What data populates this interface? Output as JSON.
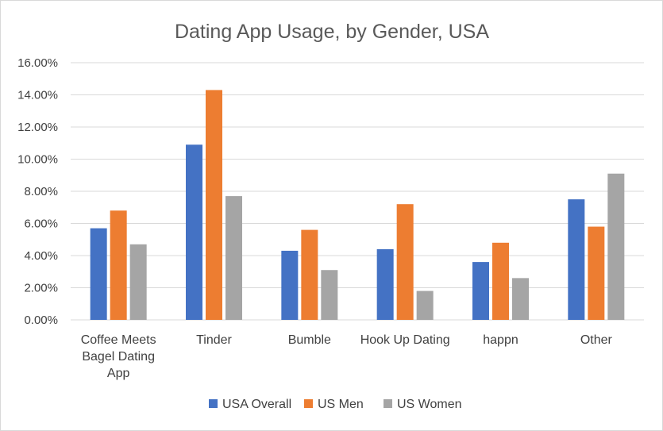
{
  "chart_data": {
    "type": "bar",
    "title": "Dating App Usage, by Gender, USA",
    "xlabel": "",
    "ylabel": "",
    "categories": [
      [
        "Coffee Meets",
        "Bagel Dating",
        "App"
      ],
      [
        "Tinder"
      ],
      [
        "Bumble"
      ],
      [
        "Hook Up Dating"
      ],
      [
        "happn"
      ],
      [
        "Other"
      ]
    ],
    "series": [
      {
        "name": "USA Overall",
        "color": "#4472c4",
        "values": [
          5.7,
          10.9,
          4.3,
          4.4,
          3.6,
          7.5
        ]
      },
      {
        "name": "US Men",
        "color": "#ed7d31",
        "values": [
          6.8,
          14.3,
          5.6,
          7.2,
          4.8,
          5.8
        ]
      },
      {
        "name": "US Women",
        "color": "#a5a5a5",
        "values": [
          4.7,
          7.7,
          3.1,
          1.8,
          2.6,
          9.1
        ]
      }
    ],
    "ylim": [
      0,
      16
    ],
    "yticks": [
      "0.00%",
      "2.00%",
      "4.00%",
      "6.00%",
      "8.00%",
      "10.00%",
      "12.00%",
      "14.00%",
      "16.00%"
    ],
    "grid": true,
    "legend_position": "bottom"
  }
}
